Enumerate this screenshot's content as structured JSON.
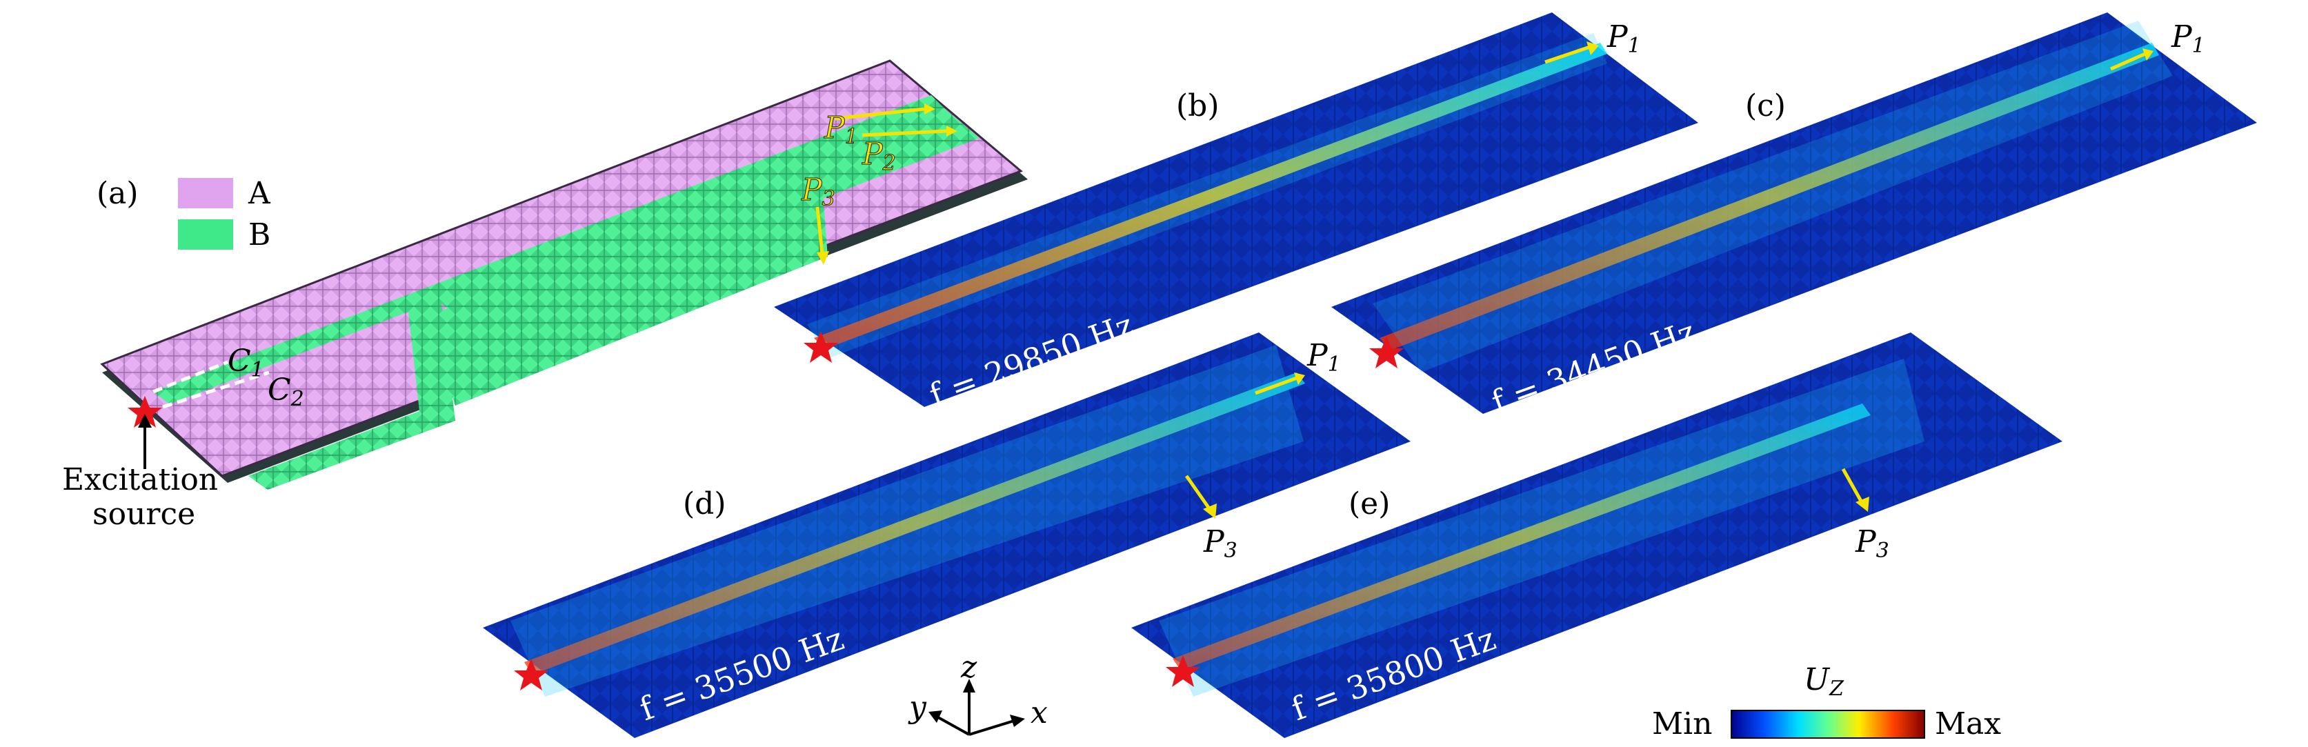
{
  "panels": {
    "a": {
      "label": "(a)",
      "legend": [
        {
          "name": "A",
          "color": "#e0a4ef"
        },
        {
          "name": "B",
          "color": "#3fe889"
        }
      ],
      "channel_labels": [
        "C",
        "1",
        "C",
        "2"
      ],
      "port_labels": [
        "P",
        "1",
        "P",
        "2",
        "P",
        "3"
      ],
      "source_label_line1": "Excitation",
      "source_label_line2": "source"
    },
    "b": {
      "label": "(b)",
      "freq": "f = 29850 Hz",
      "port": "P",
      "port_sub": "1"
    },
    "c": {
      "label": "(c)",
      "freq": "f = 34450 Hz",
      "port": "P",
      "port_sub": "1"
    },
    "d": {
      "label": "(d)",
      "freq": "f = 35500 Hz",
      "port_top": "P",
      "port_top_sub": "1",
      "port": "P",
      "port_sub": "3"
    },
    "e": {
      "label": "(e)",
      "freq": "f = 35800 Hz",
      "port": "P",
      "port_sub": "3"
    }
  },
  "axes": {
    "z": "z",
    "y": "y",
    "x": "x"
  },
  "colorbar": {
    "title": "U",
    "title_sub": "Z",
    "min_label": "Min",
    "max_label": "Max",
    "colors": [
      "#00008f",
      "#0050ff",
      "#00dfff",
      "#60ff90",
      "#ffef00",
      "#ff4000",
      "#800000"
    ]
  },
  "colors": {
    "field_bg": "#0a2aa8",
    "star": "#e8141c",
    "arrow": "#f5e300"
  }
}
